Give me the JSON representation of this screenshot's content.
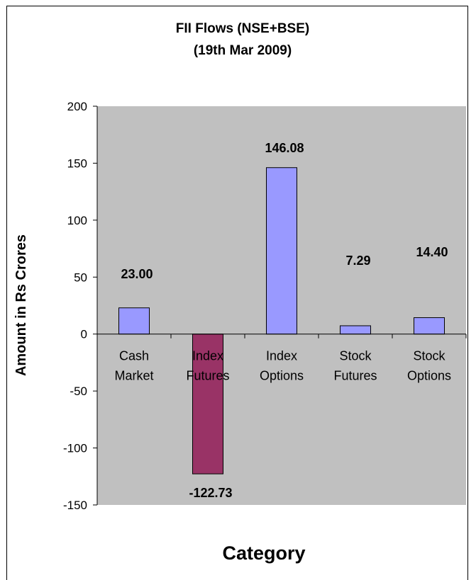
{
  "chart_data": {
    "type": "bar",
    "title_lines": [
      "FII Flows (NSE+BSE)",
      "(19th Mar 2009)"
    ],
    "categories": [
      [
        "Cash",
        "Market"
      ],
      [
        "Index",
        "Futures"
      ],
      [
        "Index",
        "Options"
      ],
      [
        "Stock",
        "Futures"
      ],
      [
        "Stock",
        "Options"
      ]
    ],
    "values": [
      23.0,
      -122.73,
      146.08,
      7.29,
      14.4
    ],
    "data_labels": [
      "23.00",
      "-122.73",
      "146.08",
      "7.29",
      "14.40"
    ],
    "ylabel": "Amount in Rs Crores",
    "xlabel": "Category",
    "ylim": [
      -150,
      200
    ],
    "yticks": [
      200,
      150,
      100,
      50,
      0,
      -50,
      -100,
      -150
    ],
    "grid": false,
    "legend": "none",
    "colors": {
      "plot_background": "#c0c0c0",
      "positive_bar": "#9999ff",
      "negative_bar": "#993366",
      "bar_border": "#000000"
    }
  }
}
